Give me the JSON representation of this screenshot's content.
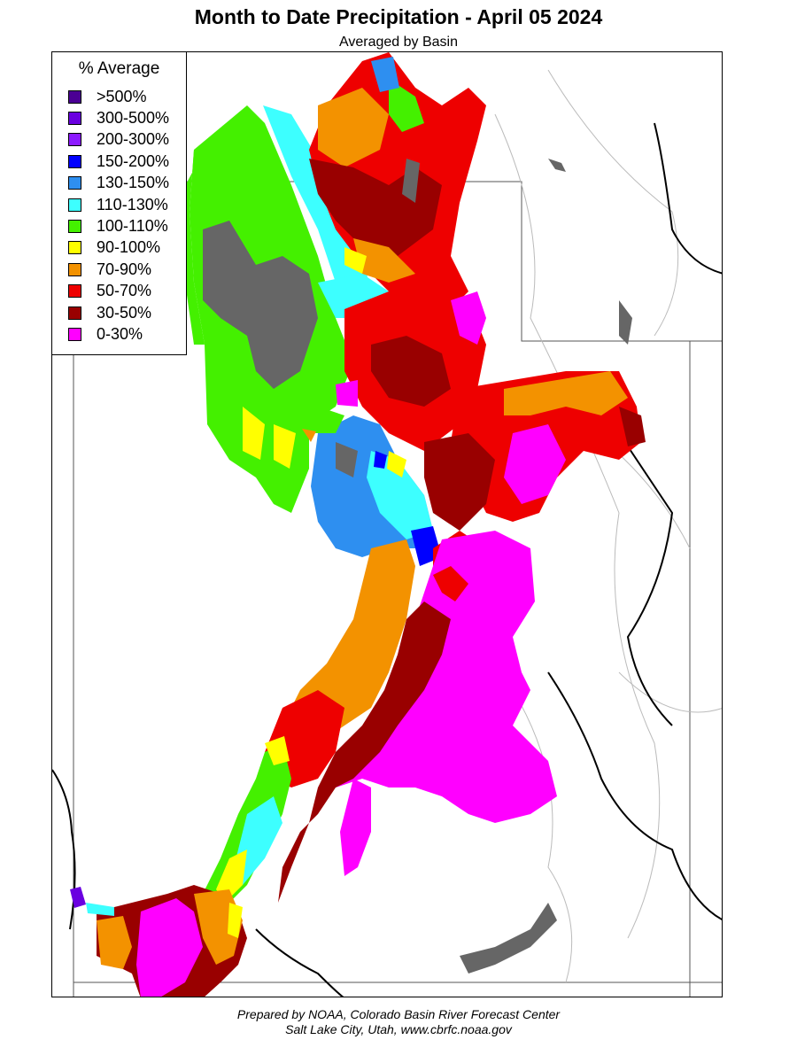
{
  "title": "Month to Date Precipitation - April 05 2024",
  "subtitle": "Averaged by Basin",
  "legend": {
    "title": "% Average",
    "items": [
      {
        "label": ">500%",
        "color": "#4b0094"
      },
      {
        "label": "300-500%",
        "color": "#6a00e0"
      },
      {
        "label": "200-300%",
        "color": "#8c1aff"
      },
      {
        "label": "150-200%",
        "color": "#0000ff"
      },
      {
        "label": "130-150%",
        "color": "#2e8ff0"
      },
      {
        "label": "110-130%",
        "color": "#3dffff"
      },
      {
        "label": "100-110%",
        "color": "#44f000"
      },
      {
        "label": "90-100%",
        "color": "#ffff00"
      },
      {
        "label": "70-90%",
        "color": "#f39200"
      },
      {
        "label": "50-70%",
        "color": "#ee0000"
      },
      {
        "label": "30-50%",
        "color": "#990000"
      },
      {
        "label": "0-30%",
        "color": "#ff00ff"
      }
    ]
  },
  "no_data_color": "#666666",
  "credits": {
    "line1": "Prepared by NOAA, Colorado Basin River Forecast Center",
    "line2": "Salt Lake City, Utah, www.cbrfc.noaa.gov"
  }
}
